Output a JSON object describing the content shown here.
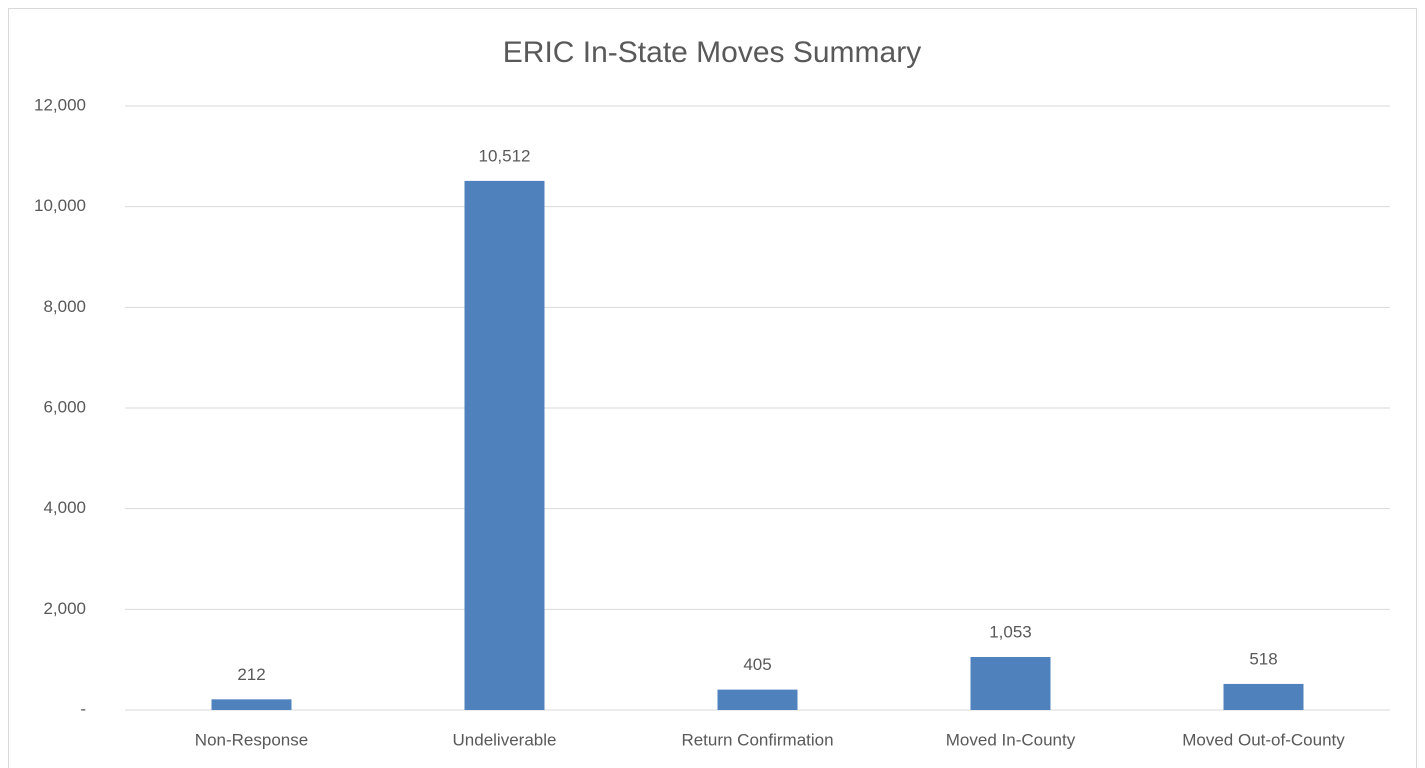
{
  "chart_data": {
    "type": "bar",
    "title": "ERIC In-State Moves Summary",
    "categories": [
      "Non-Response",
      "Undeliverable",
      "Return Confirmation",
      "Moved In-County",
      "Moved Out-of-County"
    ],
    "values": [
      212,
      10512,
      405,
      1053,
      518
    ],
    "value_labels": [
      "212",
      "10,512",
      "405",
      "1,053",
      "518"
    ],
    "color": "#4f81bd",
    "ylim": [
      0,
      12000
    ],
    "yticks": [
      {
        "value": 0,
        "label": "-"
      },
      {
        "value": 2000,
        "label": "2,000"
      },
      {
        "value": 4000,
        "label": "4,000"
      },
      {
        "value": 6000,
        "label": "6,000"
      },
      {
        "value": 8000,
        "label": "8,000"
      },
      {
        "value": 10000,
        "label": "10,000"
      },
      {
        "value": 12000,
        "label": "12,000"
      }
    ],
    "grid": true
  }
}
